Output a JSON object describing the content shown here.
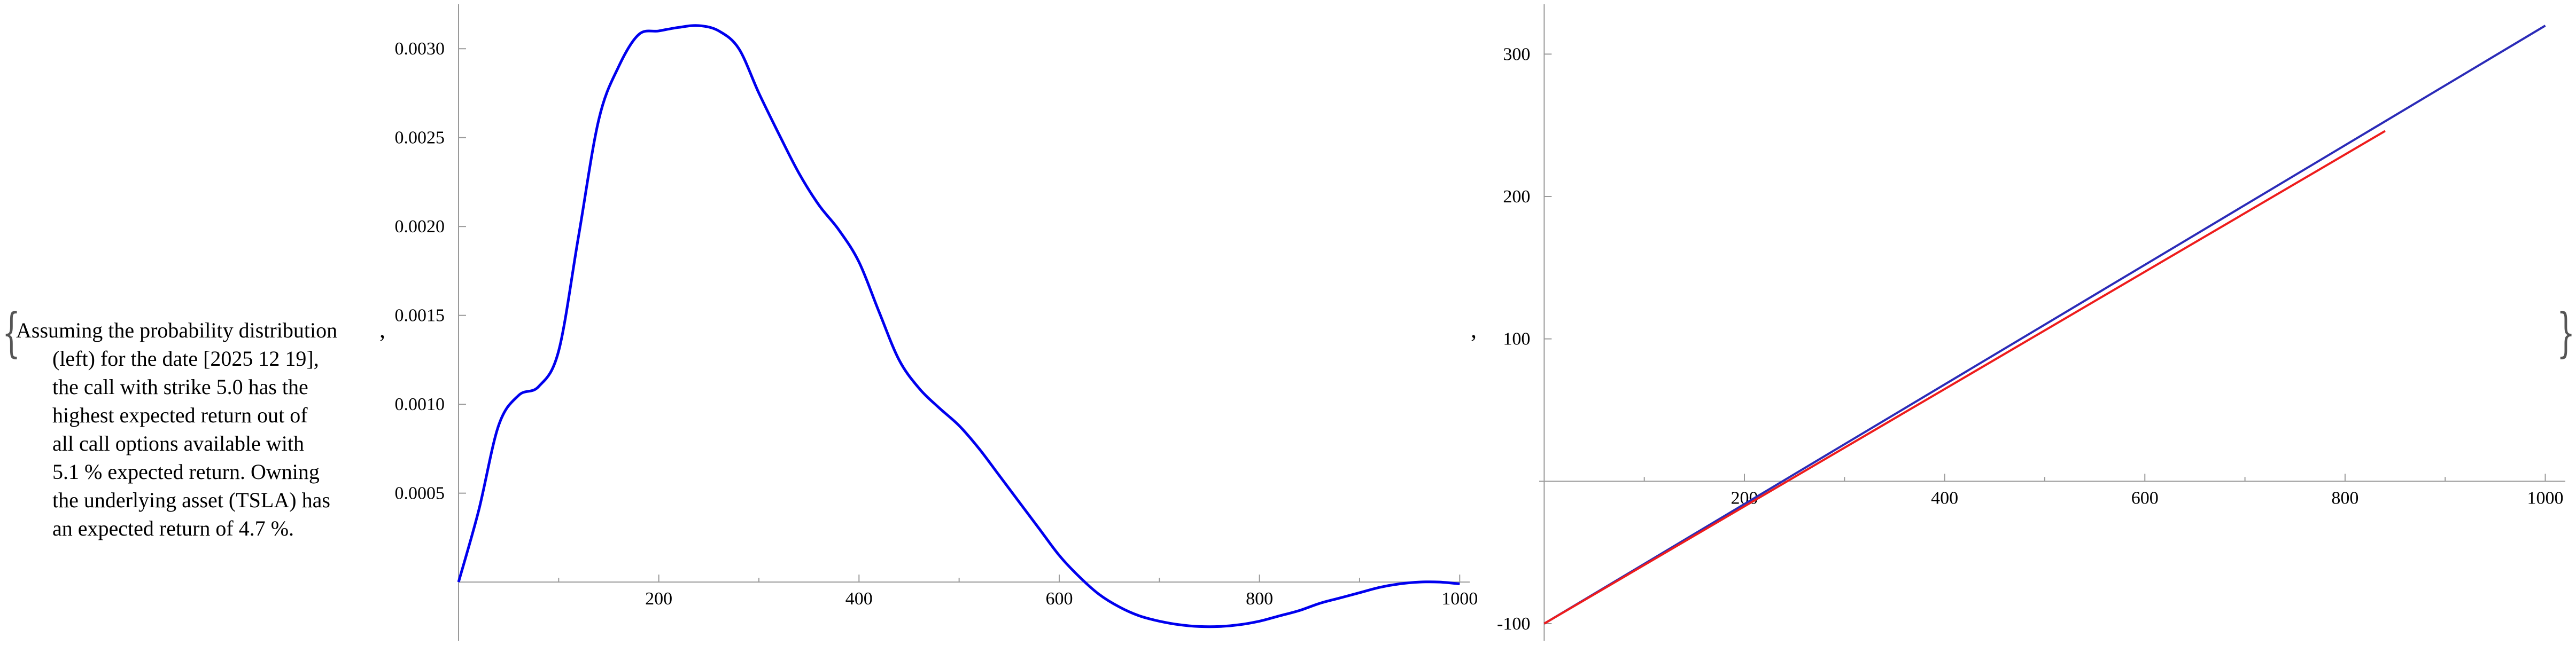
{
  "brace_open": "{",
  "brace_close": "}",
  "separators": [
    ",",
    ","
  ],
  "message_lines": [
    "Assuming the probability distribution",
    "(left) for the date [2025 12 19],",
    "the call with strike 5.0 has the",
    "highest expected return out of",
    "all call options available with",
    "5.1 % expected return. Owning",
    "the underlying asset (TSLA) has",
    "an expected return of 4.7 %."
  ],
  "colors": {
    "distribution": "#0000ee",
    "payoff_blue": "#2b2bb8",
    "payoff_red": "#ee1c1c",
    "axis": "#9a9a9a"
  },
  "chart_data": [
    {
      "type": "line",
      "title": "",
      "xlabel": "",
      "ylabel": "",
      "xlim": [
        0,
        1010
      ],
      "ylim": [
        -0.00033,
        0.00325
      ],
      "x_ticks": [
        200,
        400,
        600,
        800,
        1000
      ],
      "y_ticks": [
        0.0005,
        0.001,
        0.0015,
        0.002,
        0.0025,
        0.003
      ],
      "x_tick_labels": [
        "200",
        "400",
        "600",
        "800",
        "1000"
      ],
      "y_tick_labels": [
        "0.0005",
        "0.0010",
        "0.0015",
        "0.0020",
        "0.0025",
        "0.0030"
      ],
      "grid": false,
      "series": [
        {
          "color": "#0000ee",
          "x": [
            0,
            20,
            40,
            60,
            80,
            100,
            120,
            140,
            160,
            180,
            200,
            220,
            240,
            260,
            280,
            300,
            320,
            340,
            360,
            380,
            400,
            420,
            440,
            460,
            480,
            500,
            520,
            540,
            560,
            580,
            600,
            620,
            640,
            660,
            680,
            700,
            720,
            740,
            760,
            780,
            800,
            820,
            840,
            860,
            880,
            900,
            920,
            940,
            960,
            980,
            1000
          ],
          "y": [
            0.0,
            0.0004,
            0.00088,
            0.00105,
            0.0011,
            0.0013,
            0.00195,
            0.0026,
            0.0029,
            0.00308,
            0.0031,
            0.00312,
            0.00313,
            0.0031,
            0.003,
            0.00275,
            0.00252,
            0.0023,
            0.00212,
            0.00198,
            0.0018,
            0.00152,
            0.00125,
            0.00109,
            0.00098,
            0.00088,
            0.00075,
            0.0006,
            0.00045,
            0.0003,
            0.00015,
            3e-05,
            -7e-05,
            -0.00014,
            -0.00019,
            -0.00022,
            -0.00024,
            -0.00025,
            -0.00025,
            -0.00024,
            -0.00022,
            -0.00019,
            -0.00016,
            -0.00012,
            -9e-05,
            -6e-05,
            -3e-05,
            -1e-05,
            0.0,
            0.0,
            -1e-05
          ]
        }
      ]
    },
    {
      "type": "line",
      "title": "",
      "xlabel": "",
      "ylabel": "",
      "xlim": [
        -5,
        1020
      ],
      "ylim": [
        -112,
        335
      ],
      "x_ticks": [
        200,
        400,
        600,
        800,
        1000
      ],
      "y_ticks": [
        -100,
        100,
        200,
        300
      ],
      "x_tick_labels": [
        "200",
        "400",
        "600",
        "800",
        "1000"
      ],
      "y_tick_labels": [
        "-100",
        "100",
        "200",
        "300"
      ],
      "grid": false,
      "series": [
        {
          "color": "#2b2bb8",
          "x": [
            0,
            1000
          ],
          "y": [
            -100,
            320
          ]
        },
        {
          "color": "#ee1c1c",
          "x": [
            0,
            840
          ],
          "y": [
            -100,
            246
          ]
        }
      ]
    }
  ]
}
